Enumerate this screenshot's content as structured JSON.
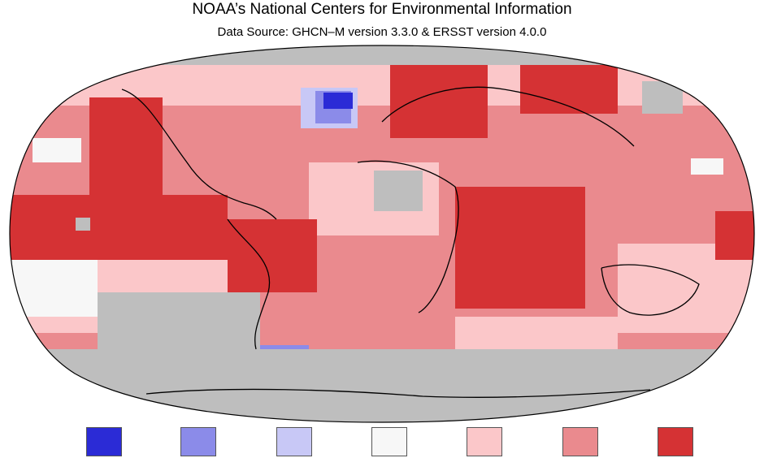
{
  "title": "NOAA’s National Centers for Environmental Information",
  "subtitle": "Data Source: GHCN–M version 3.3.0 & ERSST version 4.0.0",
  "colors": {
    "no_data": "#bebebe",
    "ocean_stroke": "#000000",
    "coastline": "#000000"
  },
  "legend": {
    "swatches": [
      {
        "name": "legend-swatch-1",
        "color": "#2b2bd6"
      },
      {
        "name": "legend-swatch-2",
        "color": "#8b8be9"
      },
      {
        "name": "legend-swatch-3",
        "color": "#c8c8f6"
      },
      {
        "name": "legend-swatch-4",
        "color": "#f7f7f7"
      },
      {
        "name": "legend-swatch-5",
        "color": "#fbc7c9"
      },
      {
        "name": "legend-swatch-6",
        "color": "#ea8a8e"
      },
      {
        "name": "legend-swatch-7",
        "color": "#d53234"
      }
    ]
  }
}
